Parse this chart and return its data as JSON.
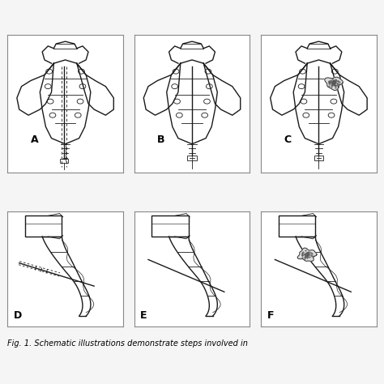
{
  "title": "Fig. 1. Schematic illustrations demonstrate steps involved in",
  "panel_labels": [
    "A",
    "B",
    "C",
    "D",
    "E",
    "F"
  ],
  "background_color": "#f5f5f5",
  "panel_bg": "#ffffff",
  "border_color": "#888888",
  "line_color": "#1a1a1a",
  "figsize": [
    4.74,
    4.74
  ],
  "dpi": 100
}
